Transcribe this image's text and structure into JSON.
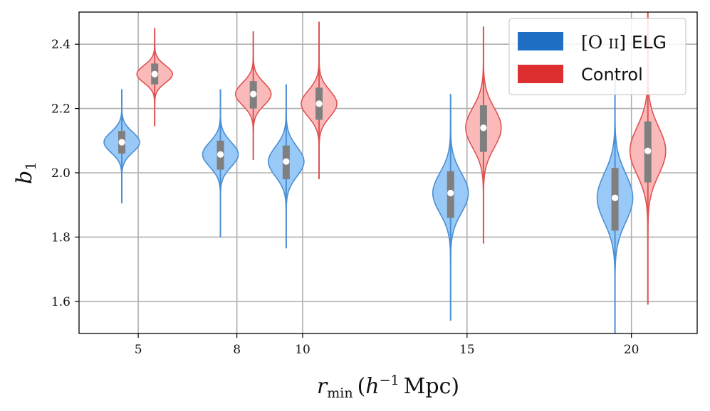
{
  "chart_data": {
    "type": "violin",
    "title": "",
    "xlabel": {
      "r": "r",
      "sub": "min",
      "open": "(",
      "h": "h",
      "exp": "−1",
      "unit": "Mpc",
      "close": ")"
    },
    "ylabel": {
      "b": "b",
      "sub": "1"
    },
    "xlim": [
      3.2,
      22
    ],
    "ylim": [
      1.5,
      2.5
    ],
    "xticks": [
      5,
      8,
      10,
      15,
      20
    ],
    "xtick_labels": [
      "5",
      "8",
      "10",
      "15",
      "20"
    ],
    "yticks": [
      1.6,
      1.8,
      2.0,
      2.2,
      2.4
    ],
    "ytick_labels": [
      "1.6",
      "1.8",
      "2.0",
      "2.2",
      "2.4"
    ],
    "grid": true,
    "legend_position": "top-right",
    "series": [
      {
        "name": "[O II] ELG",
        "legend": {
          "open": "[O ",
          "numeral": "II",
          "close": "] ELG"
        },
        "color": "#1f6fc4",
        "fill": "#99c9f7",
        "edge": "#4a8fd4",
        "violins": [
          {
            "x": 4.5,
            "min": 1.905,
            "max": 2.26,
            "q1": 2.06,
            "q3": 2.13,
            "median": 2.095,
            "sd": 0.032
          },
          {
            "x": 7.5,
            "min": 1.8,
            "max": 2.26,
            "q1": 2.01,
            "q3": 2.1,
            "median": 2.057,
            "sd": 0.038
          },
          {
            "x": 9.5,
            "min": 1.765,
            "max": 2.275,
            "q1": 1.98,
            "q3": 2.085,
            "median": 2.035,
            "sd": 0.046
          },
          {
            "x": 14.5,
            "min": 1.54,
            "max": 2.245,
            "q1": 1.86,
            "q3": 2.005,
            "median": 1.937,
            "sd": 0.062
          },
          {
            "x": 19.5,
            "min": 1.5,
            "max": 2.3,
            "q1": 1.82,
            "q3": 2.015,
            "median": 1.922,
            "sd": 0.075
          }
        ]
      },
      {
        "name": "Control",
        "legend": {
          "open": "Control",
          "numeral": "",
          "close": ""
        },
        "color": "#dd2f2f",
        "fill": "#fbbaba",
        "edge": "#e05252",
        "violins": [
          {
            "x": 5.5,
            "min": 2.145,
            "max": 2.45,
            "q1": 2.275,
            "q3": 2.34,
            "median": 2.307,
            "sd": 0.027
          },
          {
            "x": 8.5,
            "min": 2.04,
            "max": 2.44,
            "q1": 2.2,
            "q3": 2.285,
            "median": 2.245,
            "sd": 0.035
          },
          {
            "x": 10.5,
            "min": 1.98,
            "max": 2.47,
            "q1": 2.165,
            "q3": 2.265,
            "median": 2.215,
            "sd": 0.041
          },
          {
            "x": 15.5,
            "min": 1.78,
            "max": 2.455,
            "q1": 2.065,
            "q3": 2.21,
            "median": 2.14,
            "sd": 0.062
          },
          {
            "x": 20.5,
            "min": 1.59,
            "max": 2.5,
            "q1": 1.97,
            "q3": 2.16,
            "median": 2.068,
            "sd": 0.074
          }
        ]
      }
    ]
  }
}
